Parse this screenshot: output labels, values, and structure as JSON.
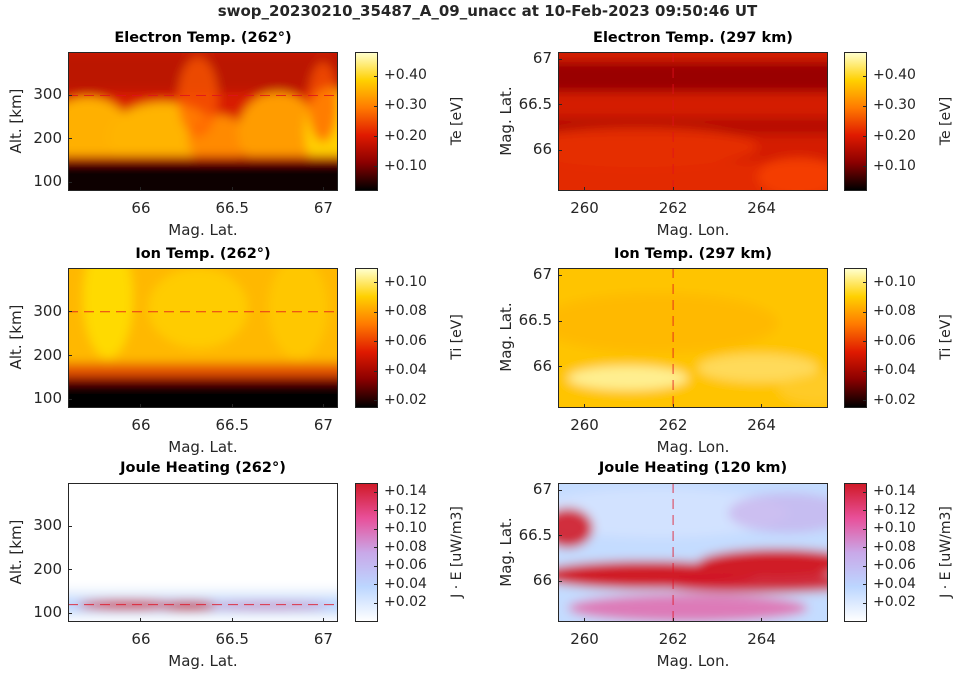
{
  "figure": {
    "title": "swop_20230210_35487_A_09_unacc at 10-Feb-2023 09:50:46 UT"
  },
  "colormaps": {
    "hot": [
      "#000000",
      "#8b0000",
      "#e01a00",
      "#ff7a00",
      "#ffd000",
      "#ffffcc"
    ],
    "joule": [
      "#ffffff",
      "#bcd6ff",
      "#c9a8e8",
      "#e8509a",
      "#d01a28"
    ]
  },
  "chart_data": [
    {
      "id": "te-alt",
      "type": "heatmap",
      "title": "Electron Temp. (262°)",
      "xlabel": "Mag. Lat.",
      "ylabel": "Alt. [km]",
      "xlim": [
        65.6,
        67.08
      ],
      "ylim": [
        80,
        400
      ],
      "xticks": [
        66,
        66.5,
        67
      ],
      "xtick_labels": [
        "66",
        "66.5",
        "67"
      ],
      "yticks": [
        100,
        200,
        300
      ],
      "ytick_labels": [
        "100",
        "200",
        "300"
      ],
      "colormap": "hot",
      "clim": [
        0.02,
        0.48
      ],
      "colorbar": {
        "label": "Te [eV]",
        "ticks": [
          0.1,
          0.2,
          0.3,
          0.4
        ],
        "tick_labels": [
          "+0.10",
          "+0.20",
          "+0.30",
          "+0.40"
        ]
      },
      "reference_line": {
        "axis": "y",
        "value": 300
      }
    },
    {
      "id": "te-map",
      "type": "heatmap",
      "title": "Electron Temp. (297 km)",
      "xlabel": "Mag. Lon.",
      "ylabel": "Mag. Lat.",
      "xlim": [
        259.4,
        265.5
      ],
      "ylim": [
        65.55,
        67.08
      ],
      "xticks": [
        260,
        262,
        264
      ],
      "xtick_labels": [
        "260",
        "262",
        "264"
      ],
      "yticks": [
        66,
        66.5,
        67
      ],
      "ytick_labels": [
        "66",
        "66.5",
        "67"
      ],
      "colormap": "hot",
      "clim": [
        0.02,
        0.48
      ],
      "colorbar": {
        "label": "Te [eV]",
        "ticks": [
          0.1,
          0.2,
          0.3,
          0.4
        ],
        "tick_labels": [
          "+0.10",
          "+0.20",
          "+0.30",
          "+0.40"
        ]
      },
      "reference_line": {
        "axis": "x",
        "value": 262
      }
    },
    {
      "id": "ti-alt",
      "type": "heatmap",
      "title": "Ion Temp. (262°)",
      "xlabel": "Mag. Lat.",
      "ylabel": "Alt. [km]",
      "xlim": [
        65.6,
        67.08
      ],
      "ylim": [
        80,
        400
      ],
      "xticks": [
        66,
        66.5,
        67
      ],
      "xtick_labels": [
        "66",
        "66.5",
        "67"
      ],
      "yticks": [
        100,
        200,
        300
      ],
      "ytick_labels": [
        "100",
        "200",
        "300"
      ],
      "colormap": "hot",
      "clim": [
        0.015,
        0.11
      ],
      "colorbar": {
        "label": "Ti [eV]",
        "ticks": [
          0.02,
          0.04,
          0.06,
          0.08,
          0.1
        ],
        "tick_labels": [
          "+0.02",
          "+0.04",
          "+0.06",
          "+0.08",
          "+0.10"
        ]
      },
      "reference_line": {
        "axis": "y",
        "value": 300
      }
    },
    {
      "id": "ti-map",
      "type": "heatmap",
      "title": "Ion Temp. (297 km)",
      "xlabel": "Mag. Lon.",
      "ylabel": "Mag. Lat.",
      "xlim": [
        259.4,
        265.5
      ],
      "ylim": [
        65.55,
        67.08
      ],
      "xticks": [
        260,
        262,
        264
      ],
      "xtick_labels": [
        "260",
        "262",
        "264"
      ],
      "yticks": [
        66,
        66.5,
        67
      ],
      "ytick_labels": [
        "66",
        "66.5",
        "67"
      ],
      "colormap": "hot",
      "clim": [
        0.015,
        0.11
      ],
      "colorbar": {
        "label": "Ti [eV]",
        "ticks": [
          0.02,
          0.04,
          0.06,
          0.08,
          0.1
        ],
        "tick_labels": [
          "+0.02",
          "+0.04",
          "+0.06",
          "+0.08",
          "+0.10"
        ]
      },
      "reference_line": {
        "axis": "x",
        "value": 262
      }
    },
    {
      "id": "jh-alt",
      "type": "heatmap",
      "title": "Joule Heating (262°)",
      "xlabel": "Mag. Lat.",
      "ylabel": "Alt. [km]",
      "xlim": [
        65.6,
        67.08
      ],
      "ylim": [
        80,
        400
      ],
      "xticks": [
        66,
        66.5,
        67
      ],
      "xtick_labels": [
        "66",
        "66.5",
        "67"
      ],
      "yticks": [
        100,
        200,
        300
      ],
      "ytick_labels": [
        "100",
        "200",
        "300"
      ],
      "colormap": "joule",
      "clim": [
        0.0,
        0.15
      ],
      "colorbar": {
        "label": "J · E [uW/m3]",
        "ticks": [
          0.02,
          0.04,
          0.06,
          0.08,
          0.1,
          0.12,
          0.14
        ],
        "tick_labels": [
          "+0.02",
          "+0.04",
          "+0.06",
          "+0.08",
          "+0.10",
          "+0.12",
          "+0.14"
        ]
      },
      "reference_line": {
        "axis": "y",
        "value": 120
      }
    },
    {
      "id": "jh-map",
      "type": "heatmap",
      "title": "Joule Heating (120 km)",
      "xlabel": "Mag. Lon.",
      "ylabel": "Mag. Lat.",
      "xlim": [
        259.4,
        265.5
      ],
      "ylim": [
        65.55,
        67.08
      ],
      "xticks": [
        260,
        262,
        264
      ],
      "xtick_labels": [
        "260",
        "262",
        "264"
      ],
      "yticks": [
        66,
        66.5,
        67
      ],
      "ytick_labels": [
        "66",
        "66.5",
        "67"
      ],
      "colormap": "joule",
      "clim": [
        0.0,
        0.15
      ],
      "colorbar": {
        "label": "J · E [uW/m3]",
        "ticks": [
          0.02,
          0.04,
          0.06,
          0.08,
          0.1,
          0.12,
          0.14
        ],
        "tick_labels": [
          "+0.02",
          "+0.04",
          "+0.06",
          "+0.08",
          "+0.10",
          "+0.12",
          "+0.14"
        ]
      },
      "reference_line": {
        "axis": "x",
        "value": 262
      }
    }
  ]
}
